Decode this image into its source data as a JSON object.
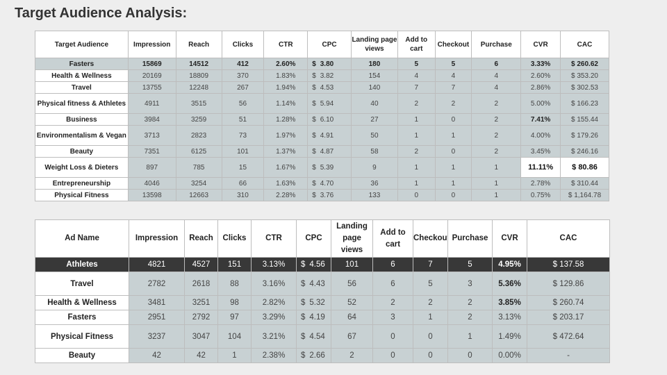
{
  "title": "Target Audience Analysis:",
  "audience_table": {
    "headers": [
      "Target Audience",
      "Impression",
      "Reach",
      "Clicks",
      "CTR",
      "CPC",
      "Landing page views",
      "Add to cart",
      "Checkout",
      "Purchase",
      "CVR",
      "CAC"
    ],
    "rows": [
      [
        "Fasters",
        "15869",
        "14512",
        "412",
        "2.60%",
        "$",
        "3.80",
        "180",
        "5",
        "5",
        "6",
        "3.33%",
        "$ 260.62"
      ],
      [
        "Health & Wellness",
        "20169",
        "18809",
        "370",
        "1.83%",
        "$",
        "3.82",
        "154",
        "4",
        "4",
        "4",
        "2.60%",
        "$ 353.20"
      ],
      [
        "Travel",
        "13755",
        "12248",
        "267",
        "1.94%",
        "$",
        "4.53",
        "140",
        "7",
        "7",
        "4",
        "2.86%",
        "$ 302.53"
      ],
      [
        "Physical fitness & Athletes",
        "4911",
        "3515",
        "56",
        "1.14%",
        "$",
        "5.94",
        "40",
        "2",
        "2",
        "2",
        "5.00%",
        "$ 166.23"
      ],
      [
        "Business",
        "3984",
        "3259",
        "51",
        "1.28%",
        "$",
        "6.10",
        "27",
        "1",
        "0",
        "2",
        "7.41%",
        "$ 155.44"
      ],
      [
        "Environmentalism & Vegan",
        "3713",
        "2823",
        "73",
        "1.97%",
        "$",
        "4.91",
        "50",
        "1",
        "1",
        "2",
        "4.00%",
        "$ 179.26"
      ],
      [
        "Beauty",
        "7351",
        "6125",
        "101",
        "1.37%",
        "$",
        "4.87",
        "58",
        "2",
        "0",
        "2",
        "3.45%",
        "$ 246.16"
      ],
      [
        "Weight Loss & Dieters",
        "897",
        "785",
        "15",
        "1.67%",
        "$",
        "5.39",
        "9",
        "1",
        "1",
        "1",
        "11.11%",
        "$  80.86"
      ],
      [
        "Entrepreneurship",
        "4046",
        "3254",
        "66",
        "1.63%",
        "$",
        "4.70",
        "36",
        "1",
        "1",
        "1",
        "2.78%",
        "$ 310.44"
      ],
      [
        "Physical Fitness",
        "13598",
        "12663",
        "310",
        "2.28%",
        "$",
        "3.76",
        "133",
        "0",
        "0",
        "1",
        "0.75%",
        "$ 1,164.78"
      ]
    ]
  },
  "ad_table": {
    "headers": [
      "Ad Name",
      "Impression",
      "Reach",
      "Clicks",
      "CTR",
      "CPC",
      "Landing page views",
      "Add to cart",
      "Checkout",
      "Purchase",
      "CVR",
      "CAC"
    ],
    "rows": [
      [
        "Athletes",
        "4821",
        "4527",
        "151",
        "3.13%",
        "$",
        "4.56",
        "101",
        "6",
        "7",
        "5",
        "4.95%",
        "$ 137.58"
      ],
      [
        "Travel",
        "2782",
        "2618",
        "88",
        "3.16%",
        "$",
        "4.43",
        "56",
        "6",
        "5",
        "3",
        "5.36%",
        "$ 129.86"
      ],
      [
        "Health & Wellness",
        "3481",
        "3251",
        "98",
        "2.82%",
        "$",
        "5.32",
        "52",
        "2",
        "2",
        "2",
        "3.85%",
        "$ 260.74"
      ],
      [
        "Fasters",
        "2951",
        "2792",
        "97",
        "3.29%",
        "$",
        "4.19",
        "64",
        "3",
        "1",
        "2",
        "3.13%",
        "$ 203.17"
      ],
      [
        "Physical Fitness",
        "3237",
        "3047",
        "104",
        "3.21%",
        "$",
        "4.54",
        "67",
        "0",
        "0",
        "1",
        "1.49%",
        "$ 472.64"
      ],
      [
        "Beauty",
        "42",
        "42",
        "1",
        "2.38%",
        "$",
        "2.66",
        "2",
        "0",
        "0",
        "0",
        "0.00%",
        "-"
      ]
    ]
  }
}
